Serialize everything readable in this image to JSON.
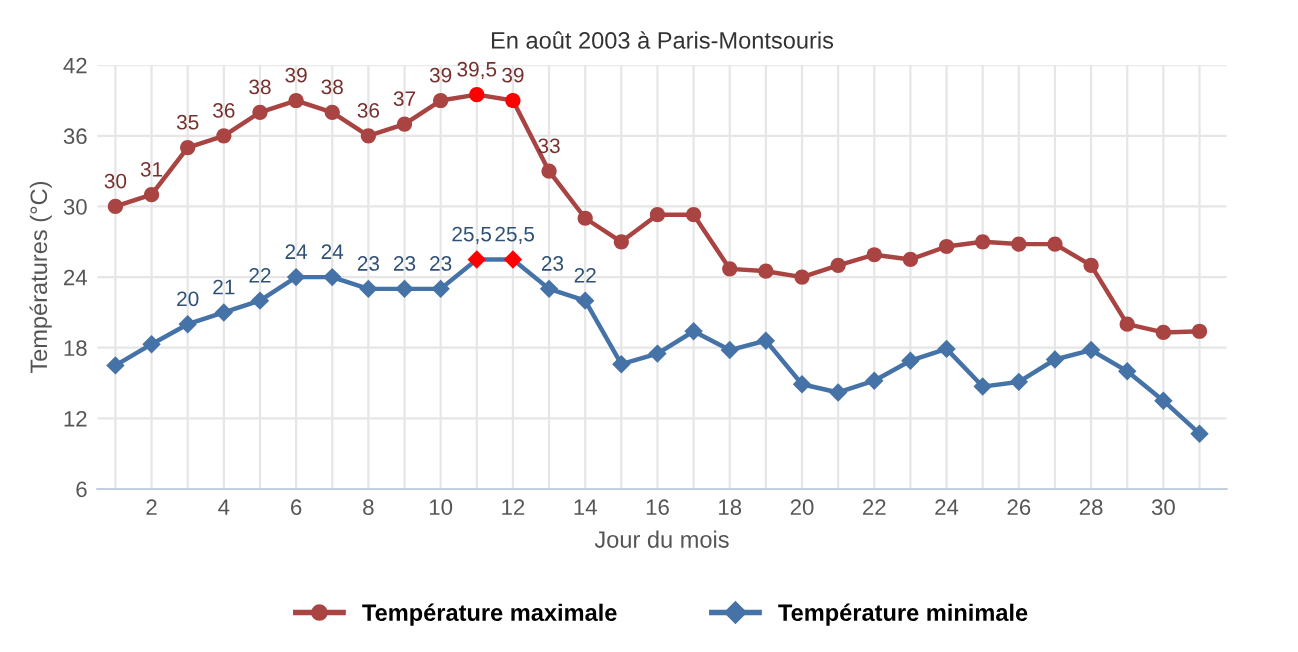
{
  "chart_data": {
    "type": "line",
    "title": "En août 2003 à Paris-Montsouris",
    "xlabel": "Jour du mois",
    "ylabel": "Températures (°C)",
    "x": [
      1,
      2,
      3,
      4,
      5,
      6,
      7,
      8,
      9,
      10,
      11,
      12,
      13,
      14,
      15,
      16,
      17,
      18,
      19,
      20,
      21,
      22,
      23,
      24,
      25,
      26,
      27,
      28,
      29,
      30,
      31
    ],
    "series": [
      {
        "name": "Température maximale",
        "color": "#a94442",
        "marker": "circle",
        "values": [
          30,
          31,
          35,
          36,
          38,
          39,
          38,
          36,
          37,
          39,
          39.5,
          39,
          33,
          29,
          27,
          29.3,
          29.3,
          24.7,
          24.5,
          24,
          25,
          25.9,
          25.5,
          26.6,
          27,
          26.8,
          26.8,
          25,
          20,
          19.3,
          19.4
        ],
        "colors": [
          "#a94442",
          "#a94442",
          "#a94442",
          "#a94442",
          "#a94442",
          "#a94442",
          "#a94442",
          "#a94442",
          "#a94442",
          "#a94442",
          "#ff0000",
          "#ff0000",
          "#a94442",
          "#a94442",
          "#a94442",
          "#a94442",
          "#a94442",
          "#a94442",
          "#a94442",
          "#a94442",
          "#a94442",
          "#a94442",
          "#a94442",
          "#a94442",
          "#a94442",
          "#a94442",
          "#a94442",
          "#a94442",
          "#a94442",
          "#a94442",
          "#a94442"
        ],
        "value_labels": [
          "30",
          "31",
          "35",
          "36",
          "38",
          "39",
          "38",
          "36",
          "37",
          "39",
          "39,5",
          "39",
          "33",
          null,
          null,
          null,
          null,
          null,
          null,
          null,
          null,
          null,
          null,
          null,
          null,
          null,
          null,
          null,
          null,
          null,
          null
        ]
      },
      {
        "name": "Température minimale",
        "color": "#4572a7",
        "marker": "diamond",
        "values": [
          16.5,
          18.3,
          20,
          21,
          22,
          24,
          24,
          23,
          23,
          23,
          25.5,
          25.5,
          23,
          22,
          16.6,
          17.5,
          19.4,
          17.8,
          18.6,
          14.9,
          14.2,
          15.2,
          16.9,
          17.9,
          14.7,
          15.1,
          17,
          17.8,
          16,
          13.5,
          10.7
        ],
        "colors": [
          "#4572a7",
          "#4572a7",
          "#4572a7",
          "#4572a7",
          "#4572a7",
          "#4572a7",
          "#4572a7",
          "#4572a7",
          "#4572a7",
          "#4572a7",
          "#ff0000",
          "#ff0000",
          "#4572a7",
          "#4572a7",
          "#4572a7",
          "#4572a7",
          "#4572a7",
          "#4572a7",
          "#4572a7",
          "#4572a7",
          "#4572a7",
          "#4572a7",
          "#4572a7",
          "#4572a7",
          "#4572a7",
          "#4572a7",
          "#4572a7",
          "#4572a7",
          "#4572a7",
          "#4572a7",
          "#4572a7"
        ],
        "value_labels": [
          null,
          null,
          "20",
          "21",
          "22",
          "24",
          "24",
          "23",
          "23",
          "23",
          "25,5",
          "25,5",
          "23",
          "22",
          null,
          null,
          null,
          null,
          null,
          null,
          null,
          null,
          null,
          null,
          null,
          null,
          null,
          null,
          null,
          null,
          null
        ]
      }
    ],
    "xlim": [
      0.5,
      31.75
    ],
    "xticks": [
      {
        "value": 1,
        "label": null
      },
      2,
      {
        "value": 3,
        "label": null
      },
      4,
      {
        "value": 5,
        "label": null
      },
      6,
      {
        "value": 7,
        "label": null
      },
      8,
      {
        "value": 9,
        "label": null
      },
      10,
      {
        "value": 11,
        "label": null
      },
      12,
      {
        "value": 13,
        "label": null
      },
      14,
      {
        "value": 15,
        "label": null
      },
      16,
      {
        "value": 17,
        "label": null
      },
      18,
      {
        "value": 19,
        "label": null
      },
      20,
      {
        "value": 21,
        "label": null
      },
      22,
      {
        "value": 23,
        "label": null
      },
      24,
      {
        "value": 25,
        "label": null
      },
      26,
      {
        "value": 27,
        "label": null
      },
      28,
      {
        "value": 29,
        "label": null
      },
      30,
      {
        "value": 31,
        "label": null
      }
    ],
    "ylim": [
      6,
      42
    ],
    "yticks": [
      6,
      12,
      18,
      24,
      30,
      36,
      42
    ],
    "grid": true,
    "legend": "bottom"
  }
}
